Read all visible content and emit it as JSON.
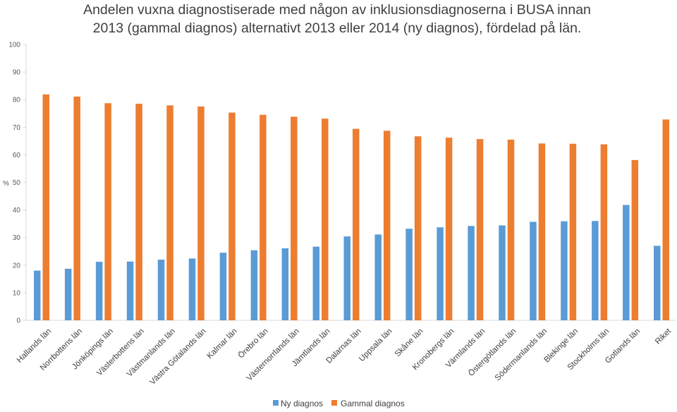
{
  "chart_data": {
    "type": "bar",
    "title_lines": [
      "Andelen vuxna diagnostiserade med någon av inklusionsdiagnoserna i BUSA innan",
      "2013 (gammal diagnos) alternativt 2013 eller 2014 (ny diagnos), fördelad på län."
    ],
    "ylabel": "%",
    "xlabel": "",
    "ylim": [
      0,
      100
    ],
    "yticks": [
      0,
      10,
      20,
      30,
      40,
      50,
      60,
      70,
      80,
      90,
      100
    ],
    "grid": false,
    "legend_position": "bottom",
    "categories": [
      "Hallands län",
      "Norrbottens län",
      "Jönköpings län",
      "Västerbottens län",
      "Västmanlands län",
      "Västra Götalands län",
      "Kalmar län",
      "Örebro län",
      "Västernorrlands län",
      "Jämtlands län",
      "Dalarnas län",
      "Uppsala län",
      "Skåne län",
      "Kronobergs län",
      "Värmlands län",
      "Östergötlands län",
      "Södermanlands län",
      "Blekinge län",
      "Stockholms län",
      "Gotlands län",
      "Riket"
    ],
    "series": [
      {
        "name": "Ny diagnos",
        "color": "#5B9BD5",
        "values": [
          18.0,
          18.7,
          21.2,
          21.3,
          22.0,
          22.4,
          24.5,
          25.4,
          26.1,
          26.7,
          30.4,
          31.1,
          33.2,
          33.7,
          34.2,
          34.4,
          35.7,
          35.9,
          36.0,
          41.8,
          27.0
        ]
      },
      {
        "name": "Gammal diagnos",
        "color": "#ED7D31",
        "values": [
          81.9,
          81.1,
          78.7,
          78.5,
          77.9,
          77.5,
          75.3,
          74.5,
          73.8,
          73.1,
          69.4,
          68.7,
          66.7,
          66.2,
          65.7,
          65.5,
          64.1,
          64.0,
          63.8,
          58.1,
          72.8
        ]
      }
    ]
  }
}
